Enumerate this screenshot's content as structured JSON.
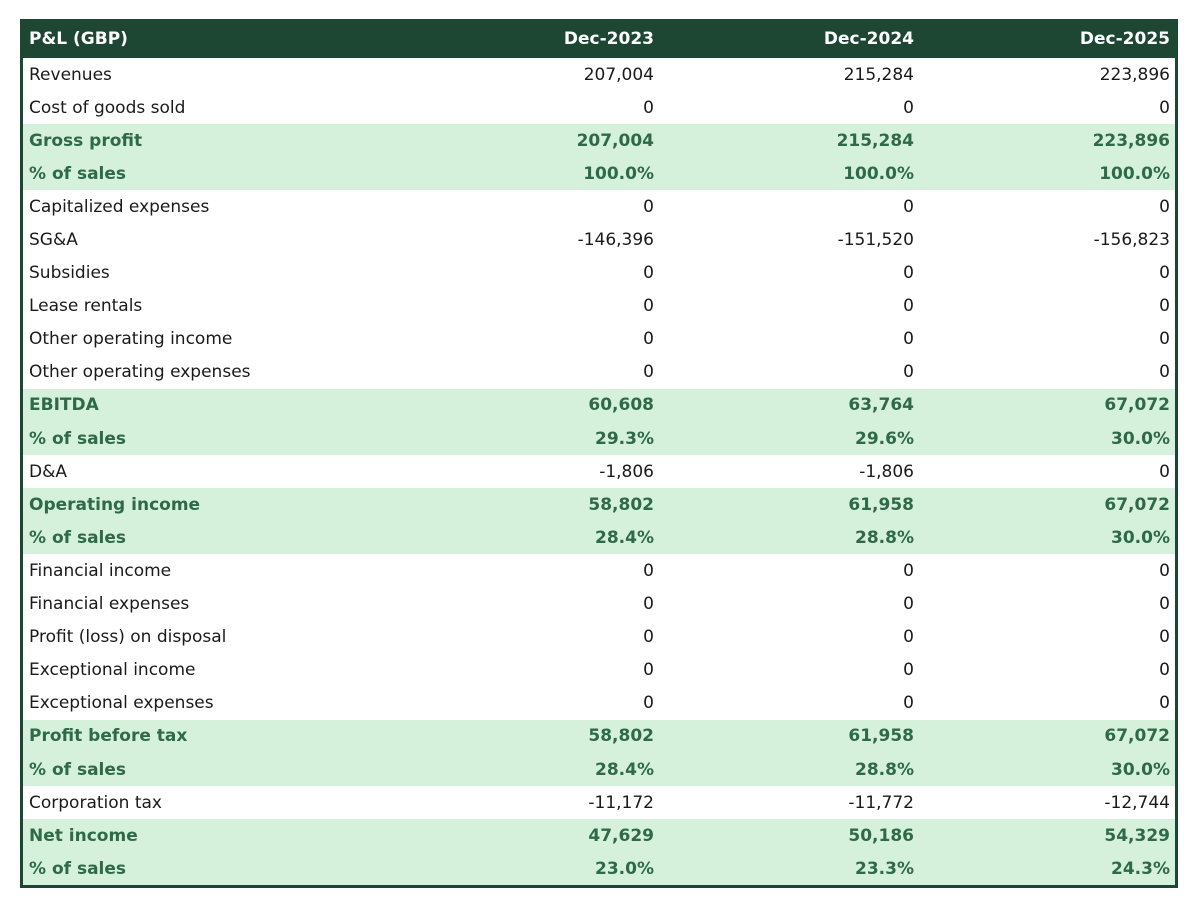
{
  "header": {
    "title": "P&L (GBP)",
    "columns": [
      "Dec-2023",
      "Dec-2024",
      "Dec-2025"
    ]
  },
  "colors": {
    "header_bg": "#1d4633",
    "highlight_bg": "#d5f1db",
    "highlight_text": "#2e6a47"
  },
  "rows": [
    {
      "label": "Revenues",
      "values": [
        "207,004",
        "215,284",
        "223,896"
      ],
      "highlight": false
    },
    {
      "label": "Cost of goods sold",
      "values": [
        "0",
        "0",
        "0"
      ],
      "highlight": false
    },
    {
      "label": "Gross profit",
      "values": [
        "207,004",
        "215,284",
        "223,896"
      ],
      "highlight": true
    },
    {
      "label": "% of sales",
      "values": [
        "100.0%",
        "100.0%",
        "100.0%"
      ],
      "highlight": true
    },
    {
      "label": "Capitalized expenses",
      "values": [
        "0",
        "0",
        "0"
      ],
      "highlight": false
    },
    {
      "label": "SG&A",
      "values": [
        "-146,396",
        "-151,520",
        "-156,823"
      ],
      "highlight": false
    },
    {
      "label": "Subsidies",
      "values": [
        "0",
        "0",
        "0"
      ],
      "highlight": false
    },
    {
      "label": "Lease rentals",
      "values": [
        "0",
        "0",
        "0"
      ],
      "highlight": false
    },
    {
      "label": "Other operating income",
      "values": [
        "0",
        "0",
        "0"
      ],
      "highlight": false
    },
    {
      "label": "Other operating expenses",
      "values": [
        "0",
        "0",
        "0"
      ],
      "highlight": false
    },
    {
      "label": "EBITDA",
      "values": [
        "60,608",
        "63,764",
        "67,072"
      ],
      "highlight": true
    },
    {
      "label": "% of sales",
      "values": [
        "29.3%",
        "29.6%",
        "30.0%"
      ],
      "highlight": true
    },
    {
      "label": "D&A",
      "values": [
        "-1,806",
        "-1,806",
        "0"
      ],
      "highlight": false
    },
    {
      "label": "Operating income",
      "values": [
        "58,802",
        "61,958",
        "67,072"
      ],
      "highlight": true
    },
    {
      "label": "% of sales",
      "values": [
        "28.4%",
        "28.8%",
        "30.0%"
      ],
      "highlight": true
    },
    {
      "label": "Financial income",
      "values": [
        "0",
        "0",
        "0"
      ],
      "highlight": false
    },
    {
      "label": "Financial expenses",
      "values": [
        "0",
        "0",
        "0"
      ],
      "highlight": false
    },
    {
      "label": "Profit (loss) on disposal",
      "values": [
        "0",
        "0",
        "0"
      ],
      "highlight": false
    },
    {
      "label": "Exceptional income",
      "values": [
        "0",
        "0",
        "0"
      ],
      "highlight": false
    },
    {
      "label": "Exceptional expenses",
      "values": [
        "0",
        "0",
        "0"
      ],
      "highlight": false
    },
    {
      "label": "Profit before tax",
      "values": [
        "58,802",
        "61,958",
        "67,072"
      ],
      "highlight": true
    },
    {
      "label": "% of sales",
      "values": [
        "28.4%",
        "28.8%",
        "30.0%"
      ],
      "highlight": true
    },
    {
      "label": "Corporation tax",
      "values": [
        "-11,172",
        "-11,772",
        "-12,744"
      ],
      "highlight": false
    },
    {
      "label": "Net income",
      "values": [
        "47,629",
        "50,186",
        "54,329"
      ],
      "highlight": true
    },
    {
      "label": "% of sales",
      "values": [
        "23.0%",
        "23.3%",
        "24.3%"
      ],
      "highlight": true
    }
  ]
}
